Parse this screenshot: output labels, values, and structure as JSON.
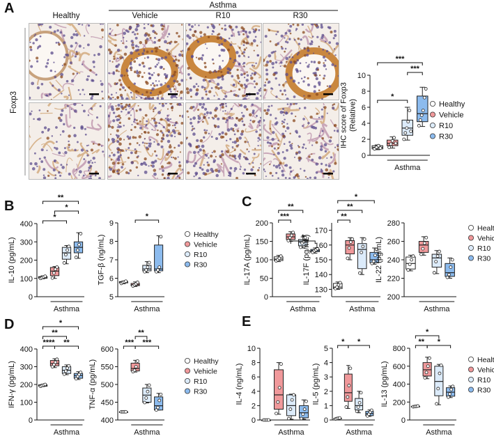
{
  "panel_letters": [
    "A",
    "B",
    "C",
    "D",
    "E"
  ],
  "panelA": {
    "columns": [
      "Healthy",
      "Vehicle",
      "R10",
      "R30"
    ],
    "group_label": "Asthma",
    "row_label": "Foxp3"
  },
  "legend": {
    "entries": [
      {
        "name": "Healthy",
        "color": "#ffffff"
      },
      {
        "name": "Vehicle",
        "color": "#f0999b"
      },
      {
        "name": "R10",
        "color": "#dcebfa"
      },
      {
        "name": "R30",
        "color": "#8cbbee"
      }
    ]
  },
  "chart_data": [
    {
      "id": "ihc_foxp3",
      "type": "box",
      "ylabel": "IHC score of Foxp3 (Relative)",
      "ylim": [
        0,
        10
      ],
      "yticks": [
        0,
        2,
        4,
        6,
        8,
        10
      ],
      "categories": [
        "Healthy",
        "Vehicle",
        "R10",
        "R30"
      ],
      "group_label": "Asthma",
      "boxes": [
        {
          "min": 0.7,
          "q1": 0.8,
          "median": 1.0,
          "q3": 1.2,
          "max": 1.3,
          "points": [
            0.8,
            1.0,
            1.2,
            0.9
          ]
        },
        {
          "min": 0.9,
          "q1": 1.2,
          "median": 1.5,
          "q3": 1.9,
          "max": 2.3,
          "points": [
            1.0,
            1.4,
            1.8,
            2.2,
            1.5
          ]
        },
        {
          "min": 1.9,
          "q1": 2.5,
          "median": 3.4,
          "q3": 4.4,
          "max": 6.0,
          "points": [
            2.0,
            2.8,
            3.4,
            4.2,
            5.6,
            3.0
          ]
        },
        {
          "min": 3.6,
          "q1": 4.2,
          "median": 5.2,
          "q3": 7.4,
          "max": 8.5,
          "points": [
            3.7,
            4.4,
            5.0,
            5.6,
            7.2,
            8.3
          ]
        }
      ],
      "sig": [
        {
          "from": 0,
          "to": 3,
          "label": "***",
          "level": 1
        },
        {
          "from": 2,
          "to": 3,
          "label": "***",
          "level": 0
        },
        {
          "from": 0,
          "to": 2,
          "label": "*",
          "level": -1
        }
      ]
    },
    {
      "id": "il10",
      "type": "box",
      "ylabel": "IL-10 (pg/mL)",
      "ylim": [
        0,
        400
      ],
      "yticks": [
        0,
        100,
        200,
        300,
        400
      ],
      "categories": [
        "Healthy",
        "Vehicle",
        "R10",
        "R30"
      ],
      "group_label": "Asthma",
      "boxes": [
        {
          "min": 98,
          "q1": 101,
          "median": 106,
          "q3": 110,
          "max": 114,
          "points": [
            100,
            104,
            108,
            112
          ]
        },
        {
          "min": 100,
          "q1": 115,
          "median": 140,
          "q3": 160,
          "max": 165,
          "points": [
            102,
            130,
            150,
            162
          ]
        },
        {
          "min": 180,
          "q1": 205,
          "median": 240,
          "q3": 270,
          "max": 280,
          "points": [
            185,
            230,
            255,
            275
          ]
        },
        {
          "min": 210,
          "q1": 240,
          "median": 270,
          "q3": 300,
          "max": 350,
          "points": [
            215,
            255,
            285,
            345
          ]
        }
      ],
      "sig": [
        {
          "from": 0,
          "to": 3,
          "label": "**",
          "level": 2
        },
        {
          "from": 1,
          "to": 3,
          "label": "*",
          "level": 1
        },
        {
          "from": 0,
          "to": 2,
          "label": "*",
          "level": 0
        }
      ]
    },
    {
      "id": "tgfb",
      "type": "box",
      "ylabel": "TGF-β (ng/mL)",
      "ylim": [
        5,
        9
      ],
      "yticks": [
        5,
        6,
        7,
        8,
        9
      ],
      "categories": [
        "Healthy",
        "Vehicle",
        "R10",
        "R30"
      ],
      "group_label": "Asthma",
      "boxes": [
        {
          "min": 5.7,
          "q1": 5.75,
          "median": 5.8,
          "q3": 5.82,
          "max": 5.85,
          "points": [
            5.72,
            5.78,
            5.8,
            5.84
          ]
        },
        {
          "min": 5.55,
          "q1": 5.6,
          "median": 5.65,
          "q3": 5.72,
          "max": 5.8,
          "points": [
            5.58,
            5.64,
            5.7,
            5.78
          ]
        },
        {
          "min": 6.3,
          "q1": 6.4,
          "median": 6.5,
          "q3": 6.7,
          "max": 6.9,
          "points": [
            6.35,
            6.45,
            6.6,
            6.85
          ]
        },
        {
          "min": 6.3,
          "q1": 6.4,
          "median": 6.5,
          "q3": 7.8,
          "max": 8.3,
          "points": [
            6.35,
            6.45,
            6.6,
            8.25
          ]
        }
      ],
      "sig": [
        {
          "from": 1,
          "to": 3,
          "label": "*",
          "level": 0
        }
      ]
    },
    {
      "id": "il17a",
      "type": "box",
      "ylabel": "IL-17A (pg/mL)",
      "ylim": [
        0,
        200
      ],
      "yticks": [
        0,
        50,
        100,
        150,
        200
      ],
      "categories": [
        "Healthy",
        "Vehicle",
        "R10",
        "R30"
      ],
      "group_label": "Asthma",
      "boxes": [
        {
          "min": 95,
          "q1": 98,
          "median": 102,
          "q3": 108,
          "max": 112,
          "points": [
            97,
            100,
            104,
            110
          ]
        },
        {
          "min": 150,
          "q1": 155,
          "median": 162,
          "q3": 170,
          "max": 176,
          "points": [
            152,
            160,
            166,
            174
          ]
        },
        {
          "min": 132,
          "q1": 138,
          "median": 148,
          "q3": 155,
          "max": 162,
          "points": [
            134,
            145,
            150,
            160
          ]
        },
        {
          "min": 118,
          "q1": 122,
          "median": 125,
          "q3": 128,
          "max": 132,
          "points": [
            120,
            124,
            127,
            130
          ]
        }
      ],
      "sig": [
        {
          "from": 0,
          "to": 2,
          "label": "**",
          "level": 1
        },
        {
          "from": 0,
          "to": 1,
          "label": "***",
          "level": 0
        },
        {
          "from": 1,
          "to": 3,
          "label": "*",
          "level": -1
        }
      ]
    },
    {
      "id": "il17f",
      "type": "box",
      "ylabel": "IL-17F (pg/mL)",
      "ylim": [
        125,
        175
      ],
      "yticks": [
        130,
        140,
        150,
        160,
        170
      ],
      "categories": [
        "Healthy",
        "Vehicle",
        "R10",
        "R30"
      ],
      "group_label": "Asthma",
      "boxes": [
        {
          "min": 130,
          "q1": 130.5,
          "median": 131.5,
          "q3": 134,
          "max": 135,
          "points": [
            130.5,
            131.5,
            133,
            134.5
          ]
        },
        {
          "min": 150,
          "q1": 154,
          "median": 160,
          "q3": 163,
          "max": 165,
          "points": [
            151,
            158,
            162,
            164
          ]
        },
        {
          "min": 140,
          "q1": 144,
          "median": 157,
          "q3": 161,
          "max": 165,
          "points": [
            141,
            155,
            159,
            164
          ]
        },
        {
          "min": 147,
          "q1": 148,
          "median": 150,
          "q3": 155,
          "max": 158,
          "points": [
            147.5,
            149,
            153,
            157
          ]
        }
      ],
      "sig": [
        {
          "from": 0,
          "to": 3,
          "label": "*",
          "level": 2
        },
        {
          "from": 0,
          "to": 2,
          "label": "**",
          "level": 1
        },
        {
          "from": 0,
          "to": 1,
          "label": "**",
          "level": 0
        }
      ]
    },
    {
      "id": "il22",
      "type": "box",
      "ylabel": "IL-22 (pg/mL)",
      "ylim": [
        200,
        280
      ],
      "yticks": [
        200,
        220,
        240,
        260,
        280
      ],
      "categories": [
        "Healthy",
        "Vehicle",
        "R10",
        "R30"
      ],
      "group_label": "Asthma",
      "boxes": [
        {
          "min": 228,
          "q1": 230,
          "median": 236,
          "q3": 243,
          "max": 245,
          "points": [
            229,
            235,
            240,
            244
          ]
        },
        {
          "min": 245,
          "q1": 248,
          "median": 256,
          "q3": 260,
          "max": 265,
          "points": [
            246,
            252,
            258,
            264
          ]
        },
        {
          "min": 225,
          "q1": 232,
          "median": 242,
          "q3": 246,
          "max": 250,
          "points": [
            226,
            238,
            244,
            249
          ]
        },
        {
          "min": 220,
          "q1": 222,
          "median": 226,
          "q3": 236,
          "max": 242,
          "points": [
            221,
            224,
            232,
            240
          ]
        }
      ],
      "sig": []
    },
    {
      "id": "ifng",
      "type": "box",
      "ylabel": "IFN-γ (pg/mL)",
      "ylim": [
        0,
        400
      ],
      "yticks": [
        0,
        100,
        200,
        300,
        400
      ],
      "categories": [
        "Healthy",
        "Vehicle",
        "R10",
        "R30"
      ],
      "group_label": "Asthma",
      "boxes": [
        {
          "min": 188,
          "q1": 190,
          "median": 195,
          "q3": 198,
          "max": 202,
          "points": [
            190,
            194,
            197,
            200
          ]
        },
        {
          "min": 295,
          "q1": 305,
          "median": 318,
          "q3": 335,
          "max": 345,
          "points": [
            300,
            312,
            325,
            342
          ]
        },
        {
          "min": 255,
          "q1": 262,
          "median": 280,
          "q3": 300,
          "max": 310,
          "points": [
            258,
            275,
            292,
            305
          ]
        },
        {
          "min": 228,
          "q1": 235,
          "median": 250,
          "q3": 262,
          "max": 272,
          "points": [
            232,
            245,
            256,
            268
          ]
        }
      ],
      "sig": [
        {
          "from": 0,
          "to": 3,
          "label": "*",
          "level": 2
        },
        {
          "from": 0,
          "to": 2,
          "label": "**",
          "level": 1
        },
        {
          "from": 0,
          "to": 1,
          "label": "****",
          "level": 0
        },
        {
          "from": 1,
          "to": 3,
          "label": "**",
          "level": 0
        }
      ]
    },
    {
      "id": "tnfa",
      "type": "box",
      "ylabel": "TNF-α (pg/mL)",
      "ylim": [
        400,
        600
      ],
      "yticks": [
        400,
        450,
        500,
        550,
        600
      ],
      "categories": [
        "Healthy",
        "Vehicle",
        "R10",
        "R30"
      ],
      "group_label": "Asthma",
      "boxes": [
        {
          "min": 423,
          "q1": 423,
          "median": 423,
          "q3": 423,
          "max": 423,
          "points": [
            423,
            423,
            423,
            423
          ]
        },
        {
          "min": 535,
          "q1": 538,
          "median": 545,
          "q3": 560,
          "max": 568,
          "points": [
            536,
            540,
            550,
            566
          ]
        },
        {
          "min": 448,
          "q1": 450,
          "median": 470,
          "q3": 490,
          "max": 500,
          "points": [
            449,
            462,
            480,
            498
          ]
        },
        {
          "min": 428,
          "q1": 428,
          "median": 440,
          "q3": 465,
          "max": 475,
          "points": [
            428,
            435,
            455,
            472
          ]
        }
      ],
      "sig": [
        {
          "from": 1,
          "to": 2,
          "label": "**",
          "level": 1
        },
        {
          "from": 0,
          "to": 1,
          "label": "***",
          "level": 0
        },
        {
          "from": 1,
          "to": 3,
          "label": "***",
          "level": 0
        }
      ]
    },
    {
      "id": "il4",
      "type": "box",
      "ylabel": "IL-4 (ng/mL)",
      "ylim": [
        0,
        10
      ],
      "yticks": [
        0,
        2,
        4,
        6,
        8,
        10
      ],
      "categories": [
        "Healthy",
        "Vehicle",
        "R10",
        "R30"
      ],
      "group_label": "Asthma",
      "boxes": [
        {
          "min": 0,
          "q1": 0,
          "median": 0,
          "q3": 0,
          "max": 0,
          "points": [
            0,
            0,
            0,
            0
          ]
        },
        {
          "min": 0.8,
          "q1": 1.5,
          "median": 3.5,
          "q3": 7.0,
          "max": 8.0,
          "points": [
            0.9,
            2.5,
            4.5,
            7.8
          ]
        },
        {
          "min": 0.1,
          "q1": 0.6,
          "median": 2.0,
          "q3": 3.5,
          "max": 3.6,
          "points": [
            0.2,
            1.5,
            2.8,
            3.5
          ]
        },
        {
          "min": 0.1,
          "q1": 0.3,
          "median": 1.0,
          "q3": 2.0,
          "max": 2.8,
          "points": [
            0.2,
            0.8,
            1.5,
            2.6
          ]
        }
      ],
      "sig": []
    },
    {
      "id": "il5",
      "type": "box",
      "ylabel": "IL-5 (pg/mL)",
      "ylim": [
        0,
        5
      ],
      "yticks": [
        0,
        1,
        2,
        3,
        4,
        5
      ],
      "categories": [
        "Healthy",
        "Vehicle",
        "R10",
        "R30"
      ],
      "group_label": "Asthma",
      "boxes": [
        {
          "min": 0.05,
          "q1": 0.08,
          "median": 0.1,
          "q3": 0.12,
          "max": 0.15,
          "points": [
            0.07,
            0.1,
            0.12,
            0.14
          ]
        },
        {
          "min": 0.8,
          "q1": 1.3,
          "median": 1.9,
          "q3": 3.2,
          "max": 3.8,
          "points": [
            0.9,
            1.6,
            2.4,
            3.6
          ]
        },
        {
          "min": 0.5,
          "q1": 0.7,
          "median": 1.0,
          "q3": 1.5,
          "max": 2.0,
          "points": [
            0.6,
            0.9,
            1.2,
            1.9
          ]
        },
        {
          "min": 0.25,
          "q1": 0.3,
          "median": 0.45,
          "q3": 0.6,
          "max": 0.7,
          "points": [
            0.28,
            0.4,
            0.55,
            0.68
          ]
        }
      ],
      "sig": [
        {
          "from": 0,
          "to": 1,
          "label": "*",
          "level": 0
        },
        {
          "from": 1,
          "to": 3,
          "label": "*",
          "level": 0
        }
      ]
    },
    {
      "id": "il13",
      "type": "box",
      "ylabel": "IL-13 (pg/mL)",
      "ylim": [
        0,
        800
      ],
      "yticks": [
        0,
        200,
        400,
        600,
        800
      ],
      "categories": [
        "Healthy",
        "Vehicle",
        "R10",
        "R30"
      ],
      "group_label": "Asthma",
      "boxes": [
        {
          "min": 145,
          "q1": 148,
          "median": 150,
          "q3": 153,
          "max": 158,
          "points": [
            147,
            150,
            152,
            156
          ]
        },
        {
          "min": 460,
          "q1": 490,
          "median": 560,
          "q3": 640,
          "max": 700,
          "points": [
            470,
            530,
            600,
            690
          ]
        },
        {
          "min": 170,
          "q1": 270,
          "median": 430,
          "q3": 600,
          "max": 620,
          "points": [
            180,
            350,
            520,
            610
          ]
        },
        {
          "min": 250,
          "q1": 265,
          "median": 310,
          "q3": 360,
          "max": 380,
          "points": [
            255,
            290,
            340,
            375
          ]
        }
      ],
      "sig": [
        {
          "from": 0,
          "to": 2,
          "label": "*",
          "level": 1
        },
        {
          "from": 0,
          "to": 1,
          "label": "**",
          "level": 0
        },
        {
          "from": 1,
          "to": 3,
          "label": "*",
          "level": 0
        }
      ]
    }
  ]
}
